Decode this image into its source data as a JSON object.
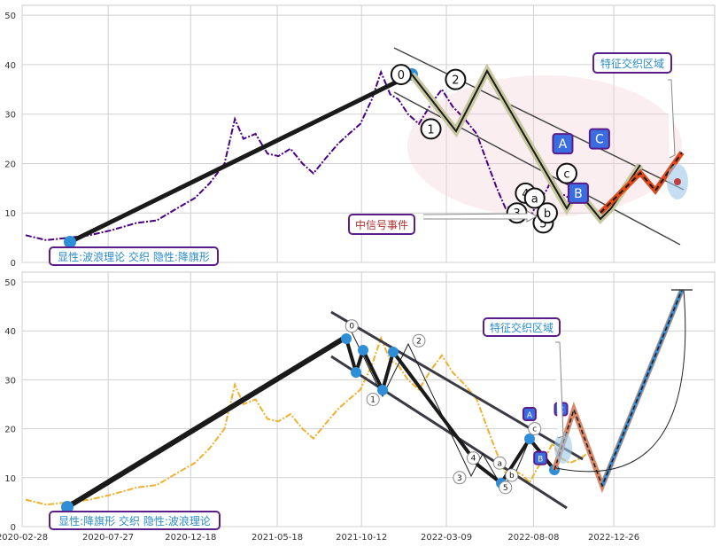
{
  "chart_data": [
    {
      "type": "line",
      "title": "",
      "xlabel": "",
      "ylabel": "",
      "ylim": [
        0,
        52
      ],
      "yticks": [
        0,
        10,
        20,
        30,
        40,
        50
      ],
      "grid": true,
      "series": [
        {
          "color": "#4b0082",
          "x": [
            "2020-03-05",
            "2020-04-10",
            "2020-05-20",
            "2020-06-25",
            "2020-08-01",
            "2020-09-15",
            "2020-10-20",
            "2020-11-25",
            "2020-12-25",
            "2021-01-20",
            "2021-02-15",
            "2021-03-05",
            "2021-03-20",
            "2021-04-10",
            "2021-05-01",
            "2021-05-20",
            "2021-06-10",
            "2021-07-01",
            "2021-07-20",
            "2021-08-10",
            "2021-09-01",
            "2021-09-20",
            "2021-10-10",
            "2021-10-30",
            "2021-11-15",
            "2021-12-01",
            "2021-12-15",
            "2022-01-01",
            "2022-01-20",
            "2022-02-10",
            "2022-03-01",
            "2022-03-20",
            "2022-04-10",
            "2022-05-01",
            "2022-05-20",
            "2022-06-05",
            "2022-06-20",
            "2022-07-05",
            "2022-07-20",
            "2022-08-01",
            "2022-08-15",
            "2022-08-30",
            "2022-09-10",
            "2022-09-25",
            "2022-10-10",
            "2022-10-30",
            "2022-11-10"
          ],
          "y": [
            5.5,
            4.5,
            5.0,
            5.5,
            6.5,
            8.0,
            8.5,
            11.0,
            13.0,
            16.0,
            20.0,
            29.0,
            25.0,
            26.0,
            22.0,
            21.5,
            23.0,
            20.0,
            18.0,
            21.0,
            24.0,
            26.0,
            28.0,
            33.0,
            38.5,
            34.0,
            33.0,
            30.0,
            28.0,
            32.0,
            35.0,
            31.5,
            29.0,
            26.0,
            20.0,
            15.0,
            11.0,
            11.5,
            10.5,
            9.0,
            12.0,
            14.5,
            17.0,
            14.0,
            13.0,
            14.0,
            15.0
          ]
        }
      ],
      "annotations": [
        "0",
        "1",
        "2",
        "3",
        "4",
        "5",
        "a",
        "b",
        "c",
        "A",
        "B",
        "C",
        "特征交织区域",
        "中信号事件",
        "显性:波浪理论 交织 隐性:降旗形"
      ]
    },
    {
      "type": "line",
      "title": "",
      "xlabel": "",
      "ylabel": "",
      "ylim": [
        0,
        52
      ],
      "yticks": [
        0,
        10,
        20,
        30,
        40,
        50
      ],
      "xticks": [
        "2020-02-28",
        "2020-07-27",
        "2020-12-18",
        "2021-05-18",
        "2021-10-12",
        "2022-03-09",
        "2022-08-08",
        "2022-12-26"
      ],
      "grid": true,
      "series": [
        {
          "color": "#f0b030",
          "x": [
            "2020-03-05",
            "2020-04-10",
            "2020-05-20",
            "2020-06-25",
            "2020-08-01",
            "2020-09-15",
            "2020-10-20",
            "2020-11-25",
            "2020-12-25",
            "2021-01-20",
            "2021-02-15",
            "2021-03-05",
            "2021-03-20",
            "2021-04-10",
            "2021-05-01",
            "2021-05-20",
            "2021-06-10",
            "2021-07-01",
            "2021-07-20",
            "2021-08-10",
            "2021-09-01",
            "2021-09-20",
            "2021-10-10",
            "2021-10-30",
            "2021-11-15",
            "2021-12-01",
            "2021-12-15",
            "2022-01-01",
            "2022-01-20",
            "2022-02-10",
            "2022-03-01",
            "2022-03-20",
            "2022-04-10",
            "2022-05-01",
            "2022-05-20",
            "2022-06-05",
            "2022-06-20",
            "2022-07-05",
            "2022-07-20",
            "2022-08-01",
            "2022-08-15",
            "2022-08-30",
            "2022-09-10",
            "2022-09-25",
            "2022-10-10",
            "2022-10-30",
            "2022-11-10"
          ],
          "y": [
            5.5,
            4.5,
            5.0,
            5.5,
            6.5,
            8.0,
            8.5,
            11.0,
            13.0,
            16.0,
            20.0,
            29.0,
            25.0,
            26.0,
            22.0,
            21.5,
            23.0,
            20.0,
            18.0,
            21.0,
            24.0,
            26.0,
            28.0,
            33.0,
            38.5,
            34.0,
            33.0,
            30.0,
            28.0,
            32.0,
            35.0,
            31.5,
            29.0,
            26.0,
            20.0,
            15.0,
            11.0,
            11.5,
            10.5,
            9.0,
            12.0,
            14.5,
            17.0,
            14.0,
            13.0,
            14.0,
            15.0
          ]
        }
      ],
      "annotations": [
        "0",
        "1",
        "2",
        "3",
        "4",
        "5",
        "a",
        "b",
        "c",
        "A",
        "B",
        "C",
        "特征交织区域",
        "显性:降旗形 交织 隐性:波浪理论"
      ]
    }
  ],
  "chart1": {
    "label_bottom": "显性:波浪理论 交织 隐性:降旗形",
    "label_zone": "特征交织区域",
    "label_signal": "中信号事件",
    "waves": [
      {
        "id": "0",
        "x": "2021-12-20",
        "y": 38
      },
      {
        "id": "1",
        "x": "2022-02-10",
        "y": 27
      },
      {
        "id": "2",
        "x": "2022-03-25",
        "y": 37
      },
      {
        "id": "3",
        "x": "2022-07-10",
        "y": 10
      },
      {
        "id": "4",
        "x": "2022-07-25",
        "y": 14
      },
      {
        "id": "5",
        "x": "2022-08-25",
        "y": 8
      },
      {
        "id": "a",
        "x": "2022-08-10",
        "y": 13
      },
      {
        "id": "b",
        "x": "2022-09-01",
        "y": 10
      },
      {
        "id": "c",
        "x": "2022-10-05",
        "y": 18
      },
      {
        "id": "A",
        "x": "2022-09-28",
        "y": 24
      },
      {
        "id": "B",
        "x": "2022-10-25",
        "y": 14
      },
      {
        "id": "C",
        "x": "2022-12-01",
        "y": 25
      }
    ]
  },
  "chart2": {
    "label_bottom": "显性:降旗形 交织 隐性:波浪理论",
    "label_zone": "特征交织区域",
    "waves": [
      {
        "id": "0",
        "x": "2021-09-25",
        "y": 41
      },
      {
        "id": "1",
        "x": "2021-11-01",
        "y": 26
      },
      {
        "id": "2",
        "x": "2022-01-20",
        "y": 38
      },
      {
        "id": "3",
        "x": "2022-04-01",
        "y": 10
      },
      {
        "id": "4",
        "x": "2022-04-25",
        "y": 14
      },
      {
        "id": "5",
        "x": "2022-06-20",
        "y": 8
      },
      {
        "id": "a",
        "x": "2022-06-10",
        "y": 13
      },
      {
        "id": "b",
        "x": "2022-07-01",
        "y": 10.5
      },
      {
        "id": "c",
        "x": "2022-08-10",
        "y": 20
      },
      {
        "id": "A",
        "x": "2022-08-01",
        "y": 23
      },
      {
        "id": "B",
        "x": "2022-08-20",
        "y": 14
      },
      {
        "id": "C",
        "x": "2022-09-25",
        "y": 24
      }
    ]
  }
}
